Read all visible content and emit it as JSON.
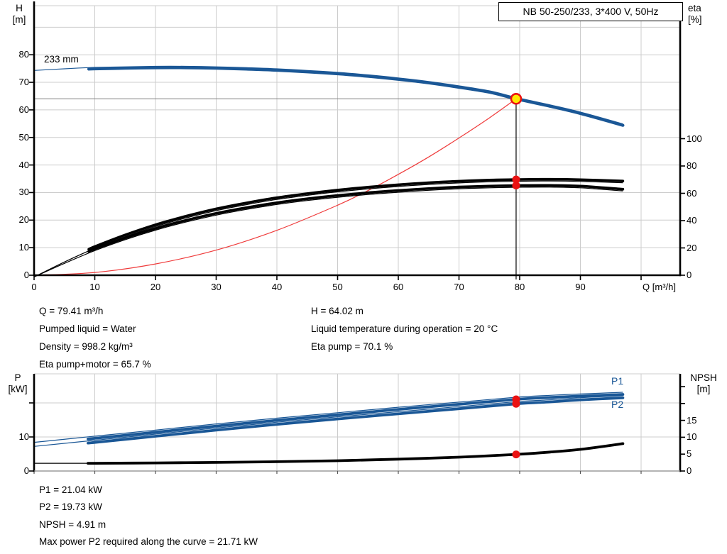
{
  "title_box": "NB 50-250/233, 3*400 V, 50Hz",
  "colors": {
    "blue": "#1a5796",
    "black": "#000000",
    "red": "#ef3b3b",
    "dot_red": "#ea1212",
    "dot_yellow": "#ffe600",
    "grid": "#cccccc",
    "crosshair_h": "#808080",
    "crosshair_v": "#000000"
  },
  "chart_data": [
    {
      "id": "hq-eta-chart",
      "type": "line",
      "annotation": "233 mm",
      "x_axis": {
        "label": "Q [m³/h]",
        "tick_labels": [
          0,
          10,
          20,
          30,
          40,
          50,
          60,
          70,
          80,
          90
        ],
        "tick_marks": [
          0,
          10,
          20,
          30,
          40,
          50,
          60,
          70,
          80,
          90,
          100
        ],
        "range": [
          0,
          106
        ]
      },
      "left_axis": {
        "label": "H",
        "unit": "[m]",
        "ticks": [
          0,
          10,
          20,
          30,
          40,
          50,
          60,
          70,
          80
        ],
        "gridlines": [
          10,
          20,
          30,
          40,
          50,
          60,
          70,
          80,
          90
        ],
        "range": [
          0,
          97
        ]
      },
      "right_axis": {
        "label": "eta",
        "unit": "[%]",
        "ticks": [
          0,
          20,
          40,
          60,
          80,
          100
        ],
        "range": [
          0,
          197
        ]
      },
      "series": [
        {
          "name": "head-233mm",
          "axis": "left",
          "color_key": "blue",
          "points": [
            [
              0,
              73.8
            ],
            [
              5,
              74.4
            ],
            [
              10,
              74.9
            ],
            [
              15,
              75.1
            ],
            [
              20,
              75.3
            ],
            [
              25,
              75.3
            ],
            [
              30,
              75.1
            ],
            [
              35,
              74.8
            ],
            [
              40,
              74.4
            ],
            [
              45,
              73.8
            ],
            [
              50,
              73.1
            ],
            [
              55,
              72.2
            ],
            [
              60,
              71.1
            ],
            [
              65,
              69.8
            ],
            [
              70,
              68.2
            ],
            [
              75,
              66.4
            ],
            [
              79.41,
              64.02
            ],
            [
              85,
              61.3
            ],
            [
              90,
              58.7
            ],
            [
              97,
              54.4
            ]
          ]
        },
        {
          "name": "system-curve",
          "axis": "left",
          "color_key": "red",
          "thin_only": true,
          "points": [
            [
              0,
              0
            ],
            [
              10,
              1.0
            ],
            [
              20,
              4.1
            ],
            [
              30,
              9.1
            ],
            [
              40,
              16.3
            ],
            [
              50,
              25.4
            ],
            [
              55,
              30.7
            ],
            [
              60,
              36.6
            ],
            [
              65,
              42.9
            ],
            [
              70,
              49.8
            ],
            [
              75,
              57.1
            ],
            [
              79.41,
              64.02
            ]
          ]
        },
        {
          "name": "eta-pump",
          "axis": "right",
          "color_key": "black",
          "points": [
            [
              0,
              0
            ],
            [
              5,
              11
            ],
            [
              10,
              21
            ],
            [
              15,
              29.5
            ],
            [
              20,
              37
            ],
            [
              25,
              43.2
            ],
            [
              30,
              48.6
            ],
            [
              35,
              53
            ],
            [
              40,
              56.8
            ],
            [
              45,
              59.8
            ],
            [
              50,
              62.4
            ],
            [
              55,
              64.5
            ],
            [
              60,
              66.3
            ],
            [
              65,
              67.8
            ],
            [
              70,
              68.9
            ],
            [
              75,
              69.7
            ],
            [
              79.41,
              70.1
            ],
            [
              85,
              70.3
            ],
            [
              90,
              70.0
            ],
            [
              97,
              69.0
            ]
          ]
        },
        {
          "name": "eta-pump-motor",
          "axis": "right",
          "color_key": "black",
          "points": [
            [
              0,
              0
            ],
            [
              5,
              10
            ],
            [
              10,
              19.3
            ],
            [
              15,
              27.3
            ],
            [
              20,
              34.3
            ],
            [
              25,
              40.2
            ],
            [
              30,
              45.3
            ],
            [
              35,
              49.5
            ],
            [
              40,
              53.1
            ],
            [
              45,
              56.0
            ],
            [
              50,
              58.4
            ],
            [
              55,
              60.4
            ],
            [
              60,
              62.1
            ],
            [
              65,
              63.5
            ],
            [
              70,
              64.6
            ],
            [
              75,
              65.3
            ],
            [
              79.41,
              65.7
            ],
            [
              85,
              65.8
            ],
            [
              90,
              65.3
            ],
            [
              97,
              63.0
            ]
          ]
        }
      ],
      "duty_point": {
        "q": 79.41,
        "h": 64.02,
        "eta_pump": 70.1,
        "eta_pump_motor": 65.7
      }
    },
    {
      "id": "power-npsh-chart",
      "type": "line",
      "x_axis": {
        "tick_marks": [
          0,
          10,
          20,
          30,
          40,
          50,
          60,
          70,
          80,
          90,
          100
        ],
        "range": [
          0,
          106
        ]
      },
      "left_axis": {
        "label": "P",
        "unit": "[kW]",
        "ticks": [
          0,
          10
        ],
        "unlabeled_ticks": [
          20
        ],
        "gridlines": [
          10,
          20
        ],
        "range": [
          0,
          28
        ]
      },
      "right_axis": {
        "label": "NPSH",
        "unit": "[m]",
        "ticks": [
          0,
          5,
          10,
          15
        ],
        "unlabeled_ticks": [
          20,
          25
        ],
        "range": [
          0,
          28
        ]
      },
      "series": [
        {
          "name": "p1",
          "label": "P1",
          "axis": "left",
          "color_key": "blue",
          "points": [
            [
              0,
              7.8
            ],
            [
              10,
              9.6
            ],
            [
              20,
              11.4
            ],
            [
              30,
              13.2
            ],
            [
              40,
              14.9
            ],
            [
              50,
              16.5
            ],
            [
              60,
              18.1
            ],
            [
              70,
              19.6
            ],
            [
              79.41,
              21.04
            ],
            [
              85,
              21.6
            ],
            [
              90,
              22.0
            ],
            [
              97,
              22.5
            ]
          ]
        },
        {
          "name": "p2",
          "label": "P2",
          "axis": "left",
          "color_key": "blue",
          "points": [
            [
              0,
              6.6
            ],
            [
              10,
              8.4
            ],
            [
              20,
              10.2
            ],
            [
              30,
              12.0
            ],
            [
              40,
              13.7
            ],
            [
              50,
              15.3
            ],
            [
              60,
              16.8
            ],
            [
              70,
              18.3
            ],
            [
              79.41,
              19.73
            ],
            [
              85,
              20.3
            ],
            [
              90,
              20.9
            ],
            [
              97,
              21.5
            ]
          ]
        },
        {
          "name": "npsh",
          "axis": "right",
          "color_key": "black",
          "points": [
            [
              0,
              2.3
            ],
            [
              10,
              2.3
            ],
            [
              20,
              2.4
            ],
            [
              30,
              2.55
            ],
            [
              40,
              2.75
            ],
            [
              50,
              3.05
            ],
            [
              60,
              3.5
            ],
            [
              70,
              4.1
            ],
            [
              79.41,
              4.91
            ],
            [
              85,
              5.6
            ],
            [
              90,
              6.4
            ],
            [
              97,
              8.1
            ]
          ]
        }
      ],
      "duty_point": {
        "q": 79.41,
        "p1": 21.04,
        "p2": 19.73,
        "npsh": 4.91
      }
    }
  ],
  "info_top": {
    "left": [
      "Q = 79.41 m³/h",
      "Pumped liquid = Water",
      "Density = 998.2 kg/m³",
      "Eta pump+motor = 65.7 %"
    ],
    "right": [
      "H = 64.02 m",
      "Liquid temperature during operation = 20 °C",
      "Eta pump = 70.1 %"
    ]
  },
  "info_bottom": [
    "P1 = 21.04 kW",
    "P2 = 19.73 kW",
    "NPSH = 4.91 m",
    "Max power P2 required along the curve = 21.71 kW"
  ]
}
